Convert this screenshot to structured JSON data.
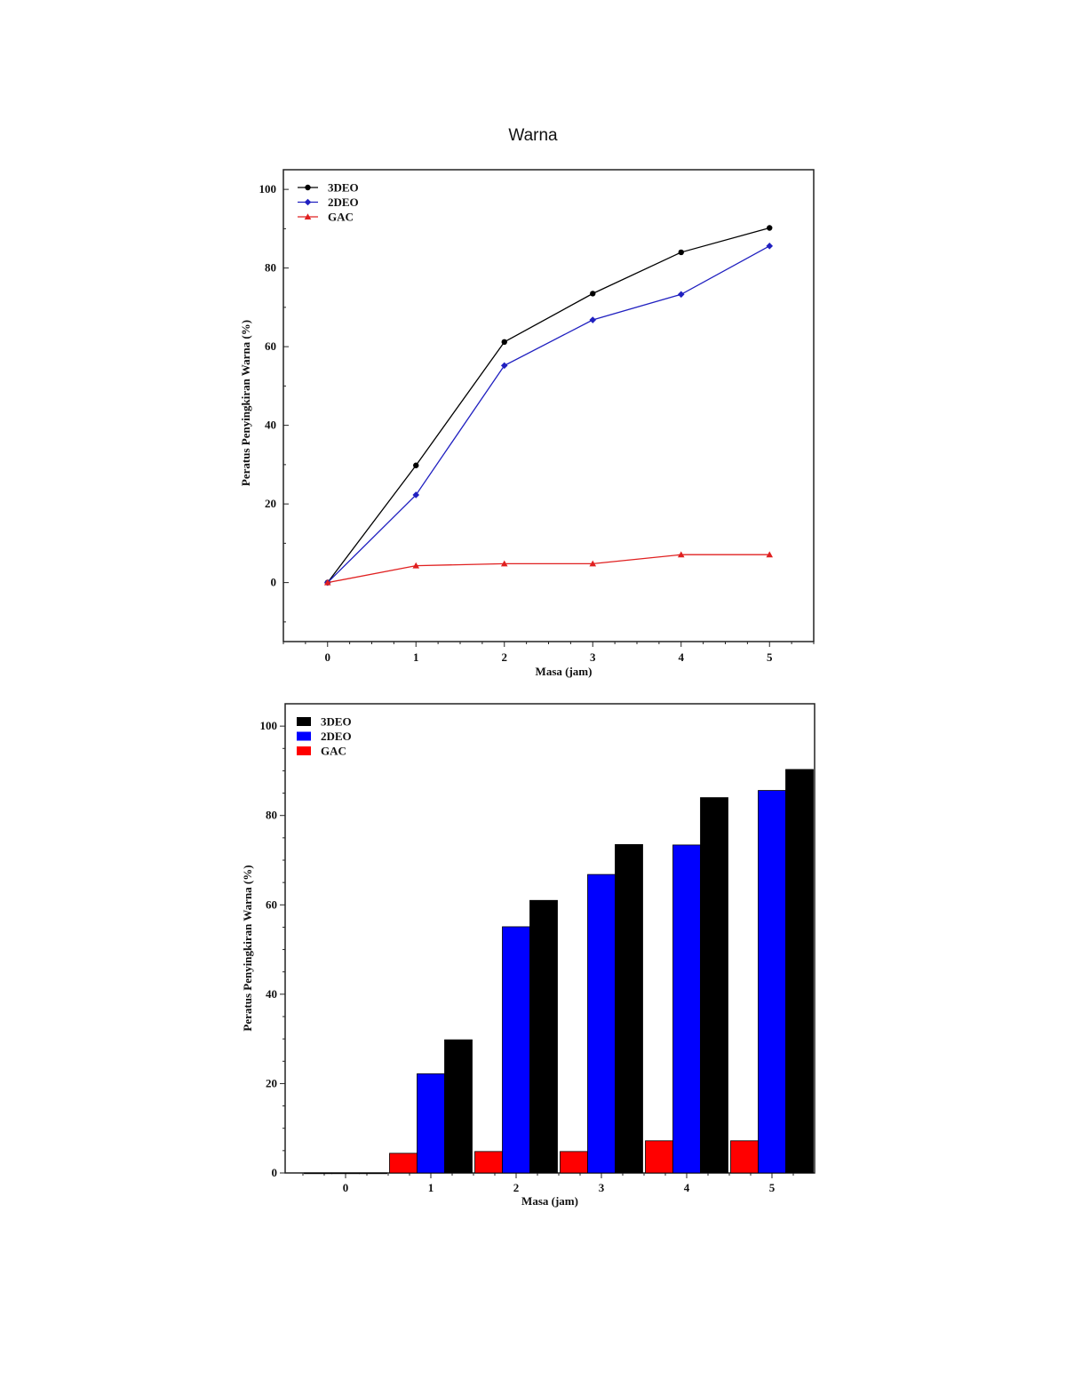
{
  "page": {
    "title": "Warna"
  },
  "chart_data": [
    {
      "type": "line",
      "x": [
        0,
        1,
        2,
        3,
        4,
        5
      ],
      "series": [
        {
          "name": "3DEO",
          "values": [
            0,
            29.8,
            61.2,
            73.5,
            84.0,
            90.2
          ],
          "color": "#000000",
          "marker": "circle"
        },
        {
          "name": "2DEO",
          "values": [
            0,
            22.3,
            55.2,
            66.8,
            73.3,
            85.6
          ],
          "color": "#2020c0",
          "marker": "diamond"
        },
        {
          "name": "GAC",
          "values": [
            0,
            4.3,
            4.8,
            4.8,
            7.1,
            7.1
          ],
          "color": "#e02020",
          "marker": "triangle"
        }
      ],
      "xlabel": "Masa (jam)",
      "ylabel": "Peratus Penyingkiran Warna (%)",
      "xlim": [
        -0.5,
        5.5
      ],
      "ylim": [
        -15,
        105
      ],
      "xticks": [
        0,
        1,
        2,
        3,
        4,
        5
      ],
      "yticks": [
        0,
        20,
        40,
        60,
        80,
        100
      ],
      "legend": "top-left",
      "grid": false
    },
    {
      "type": "bar",
      "categories": [
        "0",
        "1",
        "2",
        "3",
        "4",
        "5"
      ],
      "series": [
        {
          "name": "3DEO",
          "values": [
            0,
            29.8,
            61.0,
            73.5,
            84.0,
            90.3
          ],
          "color": "#000000"
        },
        {
          "name": "2DEO",
          "values": [
            0,
            22.2,
            55.1,
            66.8,
            73.4,
            85.6
          ],
          "color": "#0000ff"
        },
        {
          "name": "GAC",
          "values": [
            0,
            4.4,
            4.8,
            4.8,
            7.2,
            7.2
          ],
          "color": "#ff0000"
        }
      ],
      "bar_order": [
        "GAC",
        "2DEO",
        "3DEO"
      ],
      "xlabel": "Masa (jam)",
      "ylabel": "Peratus Penyingkiran Warna (%)",
      "ylim": [
        0,
        105
      ],
      "yticks": [
        0,
        20,
        40,
        60,
        80,
        100
      ],
      "legend": "top-left",
      "grid": false
    }
  ]
}
